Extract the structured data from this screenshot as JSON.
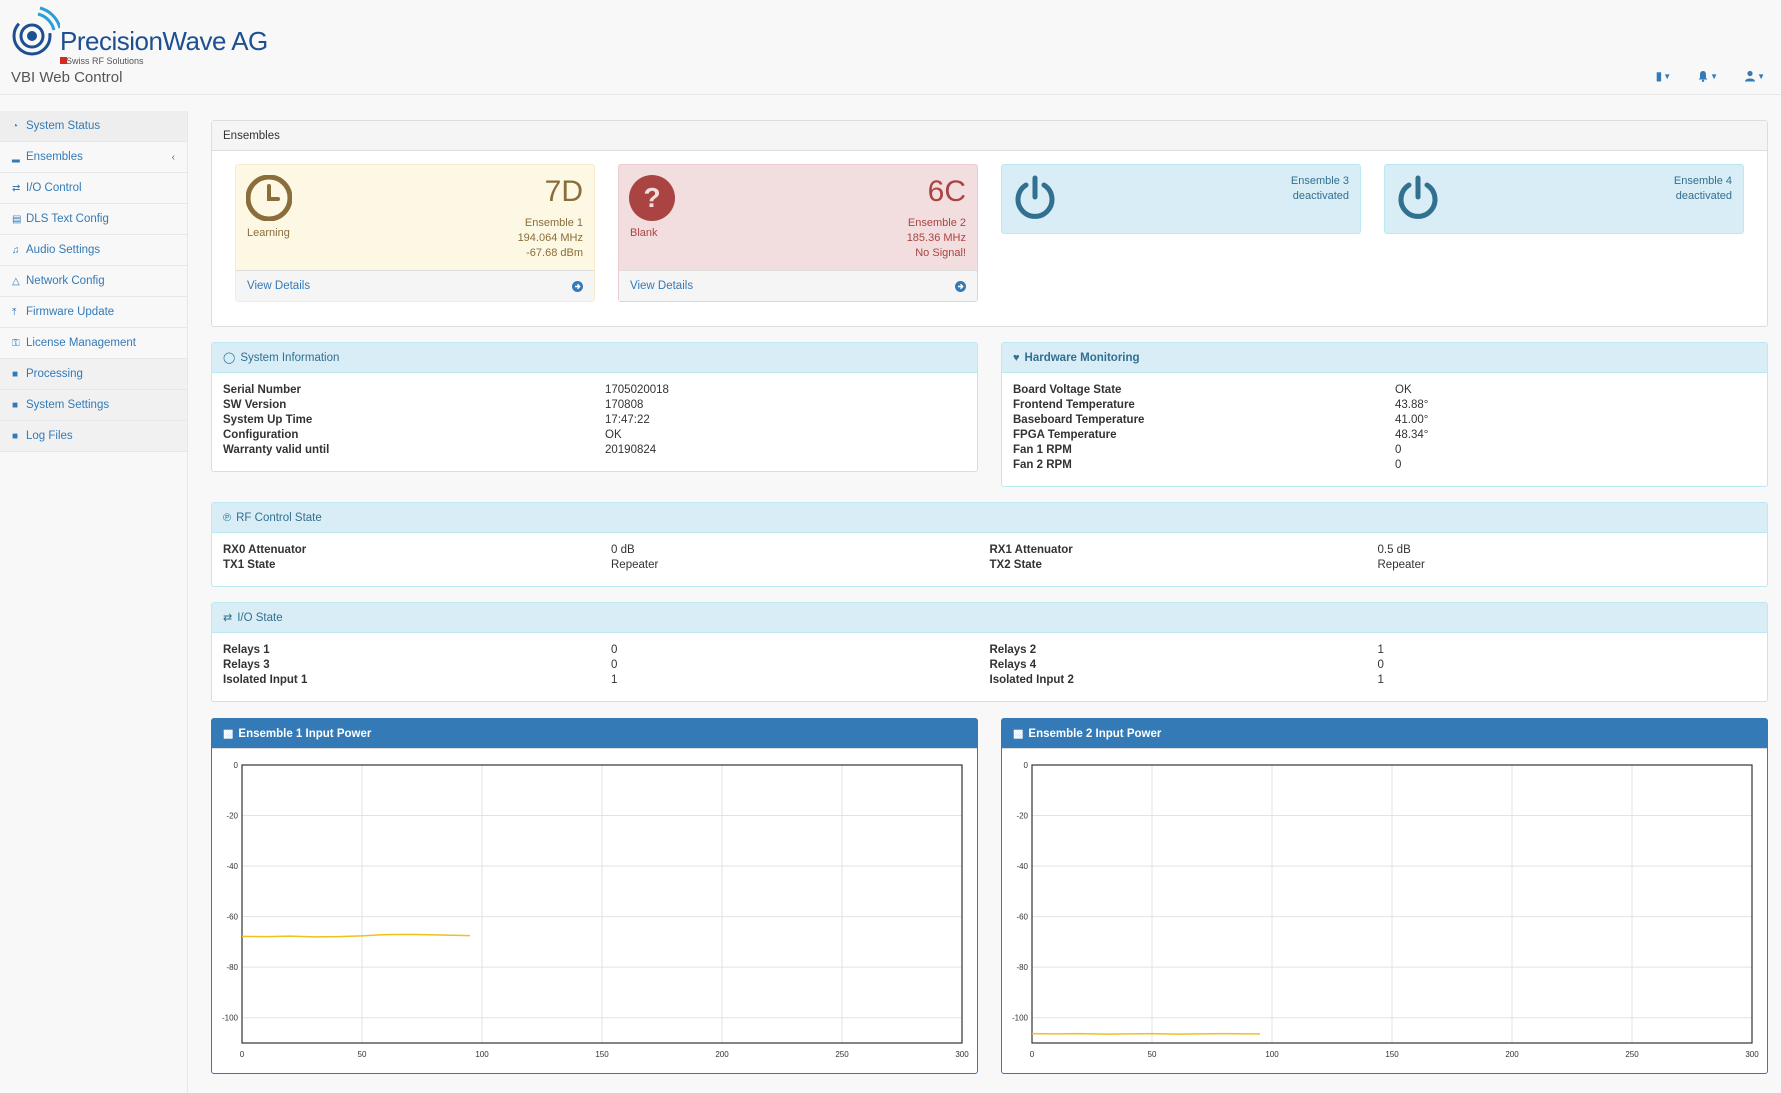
{
  "header": {
    "logo_text": "PrecisionWave AG",
    "logo_sub": "Swiss RF Solutions",
    "app_title": "VBI Web Control"
  },
  "sidebar": {
    "items": [
      {
        "label": "System Status",
        "icon": "dashboard-icon"
      },
      {
        "label": "Ensembles",
        "icon": "signal-bars-icon"
      },
      {
        "label": "I/O Control",
        "icon": "exchange-icon"
      },
      {
        "label": "DLS Text Config",
        "icon": "file-text-icon"
      },
      {
        "label": "Audio Settings",
        "icon": "music-icon"
      },
      {
        "label": "Network Config",
        "icon": "sitemap-icon"
      },
      {
        "label": "Firmware Update",
        "icon": "upload-icon"
      },
      {
        "label": "License Management",
        "icon": "key-icon"
      },
      {
        "label": "Processing",
        "icon": "lock-icon"
      },
      {
        "label": "System Settings",
        "icon": "lock-icon"
      },
      {
        "label": "Log Files",
        "icon": "lock-icon"
      }
    ]
  },
  "ensembles": {
    "title": "Ensembles",
    "e1": {
      "code": "7D",
      "status": "Learning",
      "name": "Ensemble 1",
      "freq": "194.064 MHz",
      "power": "-67.68 dBm",
      "link": "View Details"
    },
    "e2": {
      "code": "6C",
      "status": "Blank",
      "name": "Ensemble 2",
      "freq": "185.36 MHz",
      "power": "No Signal!",
      "link": "View Details"
    },
    "e3": {
      "name": "Ensemble 3",
      "state": "deactivated"
    },
    "e4": {
      "name": "Ensemble 4",
      "state": "deactivated"
    }
  },
  "system_info": {
    "title": "System Information",
    "rows": [
      {
        "k": "Serial Number",
        "v": "1705020018"
      },
      {
        "k": "SW Version",
        "v": "170808"
      },
      {
        "k": "System Up Time",
        "v": "17:47:22"
      },
      {
        "k": "Configuration",
        "v": "OK"
      },
      {
        "k": "Warranty valid until",
        "v": "20190824"
      }
    ]
  },
  "hardware": {
    "title": "Hardware Monitoring",
    "rows": [
      {
        "k": "Board Voltage State",
        "v": "OK"
      },
      {
        "k": "Frontend Temperature",
        "v": "43.88°"
      },
      {
        "k": "Baseboard Temperature",
        "v": "41.00°"
      },
      {
        "k": "FPGA Temperature",
        "v": "48.34°"
      },
      {
        "k": "Fan 1 RPM",
        "v": "0"
      },
      {
        "k": "Fan 2 RPM",
        "v": "0"
      }
    ]
  },
  "rf": {
    "title": "RF Control State",
    "left": [
      {
        "k": "RX0 Attenuator",
        "v": "0 dB"
      },
      {
        "k": "TX1 State",
        "v": "Repeater"
      }
    ],
    "right": [
      {
        "k": "RX1 Attenuator",
        "v": "0.5 dB"
      },
      {
        "k": "TX2 State",
        "v": "Repeater"
      }
    ]
  },
  "io": {
    "title": "I/O State",
    "left": [
      {
        "k": "Relays 1",
        "v": "0"
      },
      {
        "k": "Relays 3",
        "v": "0"
      },
      {
        "k": "Isolated Input 1",
        "v": "1"
      }
    ],
    "right": [
      {
        "k": "Relays 2",
        "v": "1"
      },
      {
        "k": "Relays 4",
        "v": "0"
      },
      {
        "k": "Isolated Input 2",
        "v": "1"
      }
    ]
  },
  "charts_titles": {
    "c1": "Ensemble 1 Input Power",
    "c2": "Ensemble 2 Input Power"
  },
  "chart_data": [
    {
      "type": "line",
      "title": "Ensemble 1 Input Power",
      "xlim": [
        0,
        300
      ],
      "ylim": [
        -110,
        0
      ],
      "xticks": [
        0,
        50,
        100,
        150,
        200,
        250,
        300
      ],
      "yticks": [
        0,
        -20,
        -40,
        -60,
        -80,
        -100
      ],
      "grid": true,
      "color": "#f0c020",
      "series": [
        {
          "x": [
            0,
            10,
            20,
            30,
            40,
            50,
            60,
            70,
            80,
            90,
            95
          ],
          "y": [
            -67.8,
            -67.9,
            -67.7,
            -68.0,
            -67.9,
            -67.6,
            -67.1,
            -67.0,
            -67.2,
            -67.4,
            -67.5
          ]
        }
      ]
    },
    {
      "type": "line",
      "title": "Ensemble 2 Input Power",
      "xlim": [
        0,
        300
      ],
      "ylim": [
        -110,
        0
      ],
      "xticks": [
        0,
        50,
        100,
        150,
        200,
        250,
        300
      ],
      "yticks": [
        0,
        -20,
        -40,
        -60,
        -80,
        -100
      ],
      "grid": true,
      "color": "#f0c020",
      "series": [
        {
          "x": [
            0,
            10,
            20,
            30,
            40,
            50,
            60,
            70,
            80,
            90,
            95
          ],
          "y": [
            -106.3,
            -106.4,
            -106.3,
            -106.5,
            -106.4,
            -106.3,
            -106.5,
            -106.4,
            -106.3,
            -106.4,
            -106.4
          ]
        }
      ]
    }
  ]
}
